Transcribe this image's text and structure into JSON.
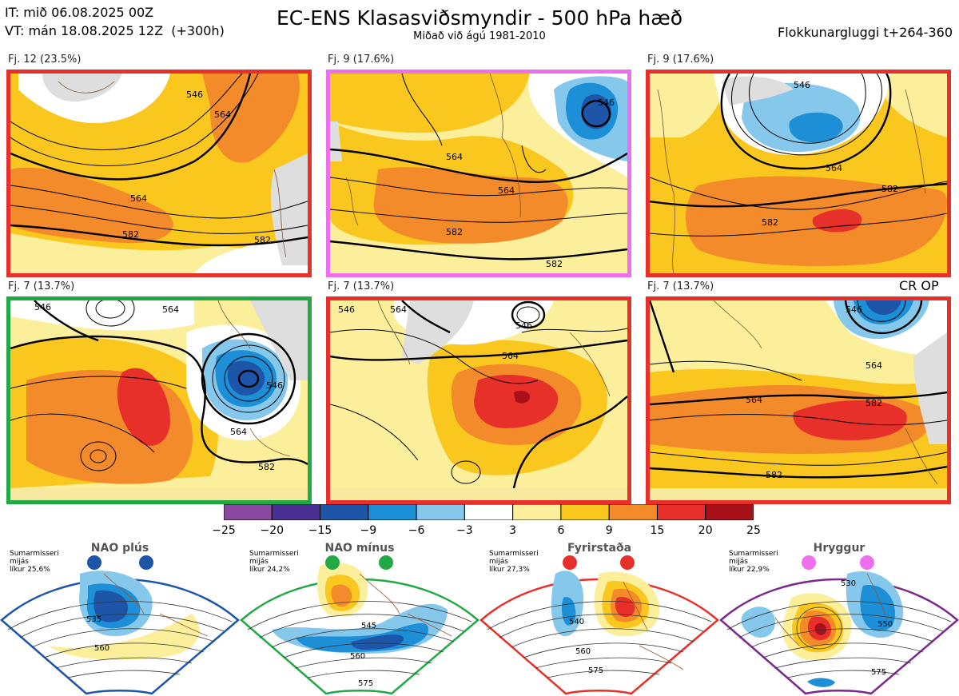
{
  "header": {
    "init_time": "IT: mið 06.08.2025 00Z",
    "valid_time": "VT: mán 18.08.2025 12Z  (+300h)",
    "title": "EC-ENS Klasasviðsmyndir - 500 hPa hæð",
    "subtitle": "Miðað við ágú 1981-2010",
    "cluster_window": "Flokkunargluggi t+264-360"
  },
  "panels": [
    {
      "label": "Fj. 12 (23.5%)",
      "border": "#e8302a",
      "contours": [
        "546",
        "564",
        "564",
        "582",
        "582"
      ]
    },
    {
      "label": "Fj. 9 (17.6%)",
      "border": "#ee6fee",
      "contours": [
        "546",
        "564",
        "564",
        "582",
        "582"
      ]
    },
    {
      "label": "Fj. 9 (17.6%)",
      "border": "#e8302a",
      "contours": [
        "546",
        "564",
        "582",
        "582"
      ]
    },
    {
      "label": "Fj. 7 (13.7%)",
      "border": "#22a845",
      "contours": [
        "546",
        "564",
        "564",
        "582",
        "546"
      ]
    },
    {
      "label": "Fj. 7 (13.7%)",
      "border": "#e8302a",
      "contours": [
        "546",
        "564",
        "564",
        "546"
      ]
    },
    {
      "label": "Fj. 7 (13.7%)",
      "border": "#e8302a",
      "contours": [
        "546",
        "564",
        "564",
        "582",
        "582"
      ],
      "tag": "CR OP"
    }
  ],
  "colorbar": {
    "ticks": [
      "−25",
      "−20",
      "−15",
      "−9",
      "−6",
      "−3",
      "3",
      "6",
      "9",
      "15",
      "20",
      "25"
    ],
    "colors": [
      "#8a48a0",
      "#4a2f95",
      "#1d56a8",
      "#1c8fd6",
      "#86c8ec",
      "#ffffff",
      "#fbef9c",
      "#f9c71e",
      "#f38b2a",
      "#e8302a",
      "#a8101a"
    ]
  },
  "regimes": [
    {
      "name": "NAO plús",
      "note": [
        "Sumarmisseri",
        "mijás",
        "líkur 25,6%"
      ],
      "color": "#1d56a8",
      "contours": [
        "535",
        "560"
      ]
    },
    {
      "name": "NAO mínus",
      "note": [
        "Sumarmisseri",
        "mijás",
        "líkur 24,2%"
      ],
      "color": "#22a845",
      "contours": [
        "545",
        "560",
        "575"
      ]
    },
    {
      "name": "Fyrirstaða",
      "note": [
        "Sumarmisseri",
        "mijás",
        "líkur 27,3%"
      ],
      "color": "#e8302a",
      "contours": [
        "540",
        "560",
        "575"
      ]
    },
    {
      "name": "Hryggur",
      "note": [
        "Sumarmisseri",
        "mijás",
        "líkur 22,9%"
      ],
      "color": "#ee6fee",
      "contours": [
        "530",
        "550",
        "575"
      ]
    }
  ]
}
